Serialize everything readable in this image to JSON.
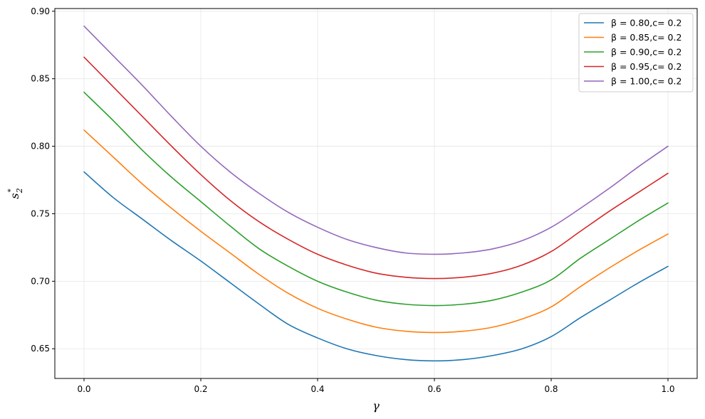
{
  "chart_data": {
    "type": "line",
    "title": "",
    "xlabel": "γ",
    "ylabel_main": "s",
    "ylabel_sub": "2",
    "ylabel_sup": "*",
    "xlim": [
      -0.05,
      1.05
    ],
    "ylim": [
      0.628,
      0.902
    ],
    "xticks": [
      0.0,
      0.2,
      0.4,
      0.6,
      0.8,
      1.0
    ],
    "xtick_labels": [
      "0.0",
      "0.2",
      "0.4",
      "0.6",
      "0.8",
      "1.0"
    ],
    "yticks": [
      0.65,
      0.7,
      0.75,
      0.8,
      0.85,
      0.9
    ],
    "ytick_labels": [
      "0.65",
      "0.70",
      "0.75",
      "0.80",
      "0.85",
      "0.90"
    ],
    "grid": true,
    "legend_position": "top-right",
    "x": [
      0.0,
      0.05,
      0.1,
      0.15,
      0.2,
      0.25,
      0.3,
      0.35,
      0.4,
      0.45,
      0.5,
      0.55,
      0.6,
      0.65,
      0.7,
      0.75,
      0.8,
      0.85,
      0.9,
      0.95,
      1.0
    ],
    "series": [
      {
        "name": "β = 0.80,c= 0.2",
        "color": "#1f77b4",
        "values": [
          0.781,
          0.762,
          0.746,
          0.73,
          0.715,
          0.699,
          0.683,
          0.668,
          0.658,
          0.65,
          0.645,
          0.642,
          0.641,
          0.642,
          0.645,
          0.65,
          0.659,
          0.673,
          0.686,
          0.699,
          0.711
        ]
      },
      {
        "name": "β = 0.85,c= 0.2",
        "color": "#ff7f0e",
        "values": [
          0.812,
          0.792,
          0.772,
          0.754,
          0.737,
          0.721,
          0.705,
          0.691,
          0.68,
          0.672,
          0.666,
          0.663,
          0.662,
          0.663,
          0.666,
          0.672,
          0.681,
          0.696,
          0.71,
          0.723,
          0.735
        ]
      },
      {
        "name": "β = 0.90,c= 0.2",
        "color": "#2ca02c",
        "values": [
          0.84,
          0.819,
          0.797,
          0.777,
          0.759,
          0.741,
          0.724,
          0.711,
          0.7,
          0.692,
          0.686,
          0.683,
          0.682,
          0.683,
          0.686,
          0.692,
          0.701,
          0.717,
          0.731,
          0.745,
          0.758
        ]
      },
      {
        "name": "β = 0.95,c= 0.2",
        "color": "#d62728",
        "values": [
          0.866,
          0.844,
          0.822,
          0.8,
          0.779,
          0.76,
          0.744,
          0.731,
          0.72,
          0.712,
          0.706,
          0.703,
          0.702,
          0.703,
          0.706,
          0.712,
          0.722,
          0.737,
          0.752,
          0.766,
          0.78
        ]
      },
      {
        "name": "β = 1.00,c= 0.2",
        "color": "#9467bd",
        "values": [
          0.889,
          0.867,
          0.845,
          0.822,
          0.8,
          0.781,
          0.765,
          0.751,
          0.74,
          0.731,
          0.725,
          0.721,
          0.72,
          0.721,
          0.724,
          0.73,
          0.74,
          0.754,
          0.769,
          0.785,
          0.8
        ]
      }
    ]
  }
}
